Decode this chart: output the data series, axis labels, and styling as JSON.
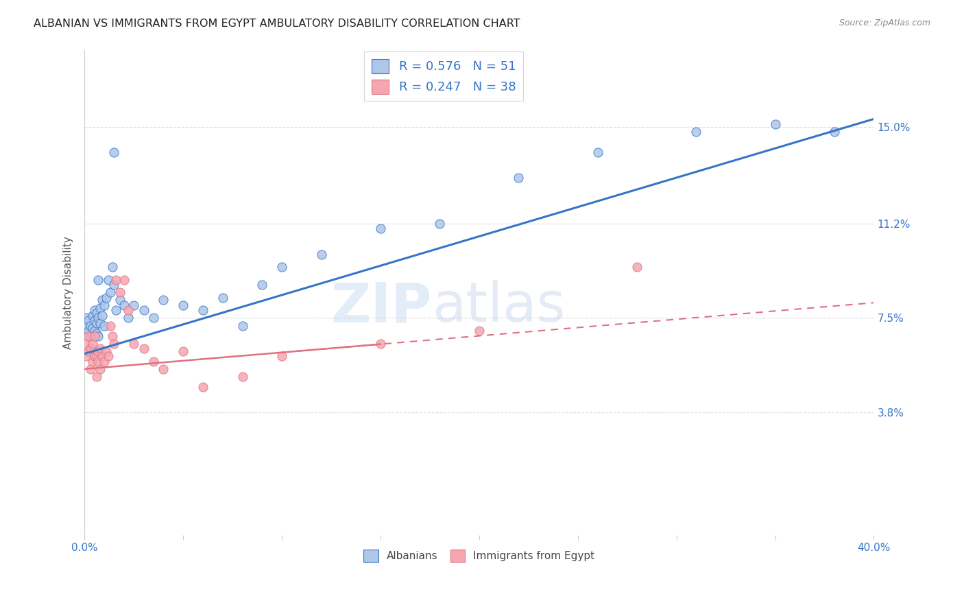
{
  "title": "ALBANIAN VS IMMIGRANTS FROM EGYPT AMBULATORY DISABILITY CORRELATION CHART",
  "source": "Source: ZipAtlas.com",
  "ylabel": "Ambulatory Disability",
  "ytick_labels": [
    "15.0%",
    "11.2%",
    "7.5%",
    "3.8%"
  ],
  "ytick_values": [
    0.15,
    0.112,
    0.075,
    0.038
  ],
  "legend_label1": "Albanians",
  "legend_label2": "Immigrants from Egypt",
  "albanian_color": "#aec6e8",
  "egypt_color": "#f4a7b0",
  "line_albanian_color": "#3575c8",
  "line_egypt_color": "#e07080",
  "watermark_zip": "ZIP",
  "watermark_atlas": "atlas",
  "albanian_x": [
    0.001,
    0.001,
    0.002,
    0.002,
    0.003,
    0.003,
    0.004,
    0.004,
    0.005,
    0.005,
    0.005,
    0.006,
    0.006,
    0.006,
    0.007,
    0.007,
    0.007,
    0.008,
    0.008,
    0.009,
    0.009,
    0.01,
    0.01,
    0.011,
    0.012,
    0.013,
    0.014,
    0.015,
    0.016,
    0.018,
    0.02,
    0.022,
    0.025,
    0.03,
    0.035,
    0.04,
    0.05,
    0.06,
    0.07,
    0.08,
    0.09,
    0.1,
    0.12,
    0.15,
    0.18,
    0.22,
    0.26,
    0.31,
    0.35,
    0.38,
    0.015
  ],
  "albanian_y": [
    0.072,
    0.075,
    0.074,
    0.07,
    0.068,
    0.072,
    0.071,
    0.076,
    0.074,
    0.07,
    0.078,
    0.069,
    0.073,
    0.077,
    0.068,
    0.075,
    0.09,
    0.079,
    0.073,
    0.082,
    0.076,
    0.072,
    0.08,
    0.083,
    0.09,
    0.085,
    0.095,
    0.088,
    0.078,
    0.082,
    0.08,
    0.075,
    0.08,
    0.078,
    0.075,
    0.082,
    0.08,
    0.078,
    0.083,
    0.072,
    0.088,
    0.095,
    0.1,
    0.11,
    0.112,
    0.13,
    0.14,
    0.148,
    0.151,
    0.148,
    0.14
  ],
  "egypt_x": [
    0.001,
    0.001,
    0.002,
    0.002,
    0.003,
    0.003,
    0.004,
    0.004,
    0.005,
    0.005,
    0.006,
    0.006,
    0.007,
    0.007,
    0.008,
    0.008,
    0.009,
    0.01,
    0.011,
    0.012,
    0.013,
    0.014,
    0.015,
    0.016,
    0.018,
    0.02,
    0.022,
    0.025,
    0.03,
    0.035,
    0.04,
    0.05,
    0.06,
    0.08,
    0.1,
    0.15,
    0.2,
    0.28
  ],
  "egypt_y": [
    0.06,
    0.065,
    0.062,
    0.068,
    0.055,
    0.063,
    0.058,
    0.065,
    0.06,
    0.068,
    0.052,
    0.06,
    0.058,
    0.062,
    0.055,
    0.063,
    0.06,
    0.058,
    0.062,
    0.06,
    0.072,
    0.068,
    0.065,
    0.09,
    0.085,
    0.09,
    0.078,
    0.065,
    0.063,
    0.058,
    0.055,
    0.062,
    0.048,
    0.052,
    0.06,
    0.065,
    0.07,
    0.095
  ],
  "xlim": [
    0.0,
    0.4
  ],
  "ylim": [
    -0.01,
    0.18
  ],
  "background_color": "#ffffff",
  "grid_color": "#d8d8d8",
  "line_albanian_intercept": 0.061,
  "line_albanian_slope": 0.23,
  "line_egypt_intercept": 0.055,
  "line_egypt_slope": 0.065
}
